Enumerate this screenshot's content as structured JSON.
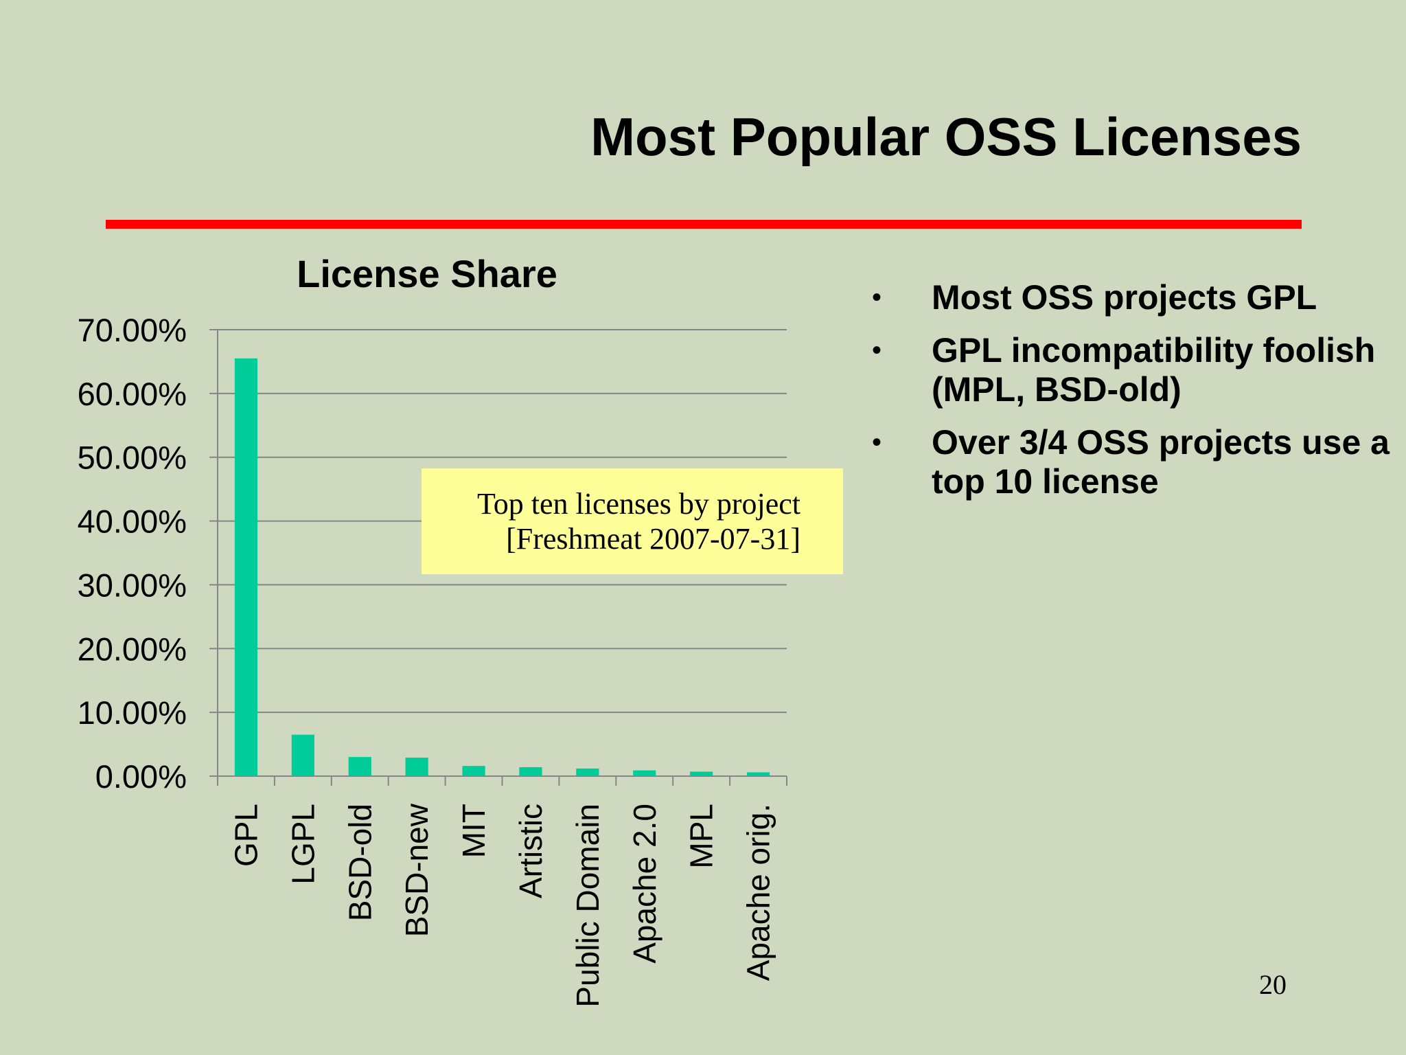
{
  "slide": {
    "title": "Most Popular OSS Licenses",
    "page_number": "20",
    "accent_color": "#ff0000"
  },
  "annotation": {
    "line1": "Top ten licenses by project",
    "line2": "[Freshmeat 2007-07-31]"
  },
  "bullets": [
    {
      "text": "Most OSS projects GPL"
    },
    {
      "text": "GPL incompatibility foolish (MPL, BSD-old)"
    },
    {
      "text": "Over 3/4 OSS projects use a top 10 license"
    }
  ],
  "chart_data": {
    "type": "bar",
    "title": "License Share",
    "xlabel": "",
    "ylabel": "",
    "categories": [
      "GPL",
      "LGPL",
      "BSD-old",
      "BSD-new",
      "MIT",
      "Artistic",
      "Public Domain",
      "Apache 2.0",
      "MPL",
      "Apache orig."
    ],
    "values": [
      65.5,
      6.5,
      3.0,
      2.9,
      1.6,
      1.4,
      1.2,
      0.9,
      0.7,
      0.6
    ],
    "ylim": [
      0,
      70
    ],
    "yticks": [
      "0.00%",
      "10.00%",
      "20.00%",
      "30.00%",
      "40.00%",
      "50.00%",
      "60.00%",
      "70.00%"
    ],
    "grid": true,
    "legend": "none",
    "bar_color": "#00cc99"
  }
}
